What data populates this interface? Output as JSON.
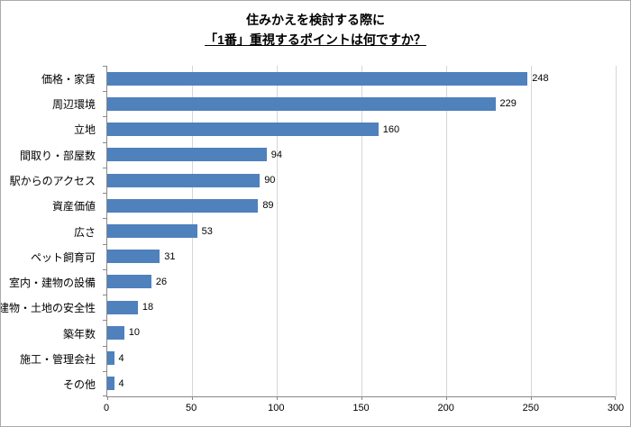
{
  "title": {
    "line1": "住みかえを検討する際に",
    "line2": "「1番」重視するポイントは何ですか？"
  },
  "chart_data": {
    "type": "bar",
    "orientation": "horizontal",
    "title": "住みかえを検討する際に「1番」重視するポイントは何ですか？",
    "categories": [
      "価格・家賃",
      "周辺環境",
      "立地",
      "間取り・部屋数",
      "駅からのアクセス",
      "資産価値",
      "広さ",
      "ペット飼育可",
      "室内・建物の設備",
      "建物・土地の安全性",
      "築年数",
      "施工・管理会社",
      "その他"
    ],
    "values": [
      248,
      229,
      160,
      94,
      90,
      89,
      53,
      31,
      26,
      18,
      10,
      4,
      4
    ],
    "xlabel": "",
    "ylabel": "",
    "xlim": [
      0,
      300
    ],
    "xticks": [
      0,
      50,
      100,
      150,
      200,
      250,
      300
    ],
    "grid": true,
    "data_labels": true,
    "legend": "none",
    "bar_color": "#4f81bd"
  },
  "colors": {
    "bar": "#4f81bd",
    "gridline": "#d6d6d6",
    "axis": "#898989",
    "border": "#ababab",
    "text": "#000000"
  }
}
